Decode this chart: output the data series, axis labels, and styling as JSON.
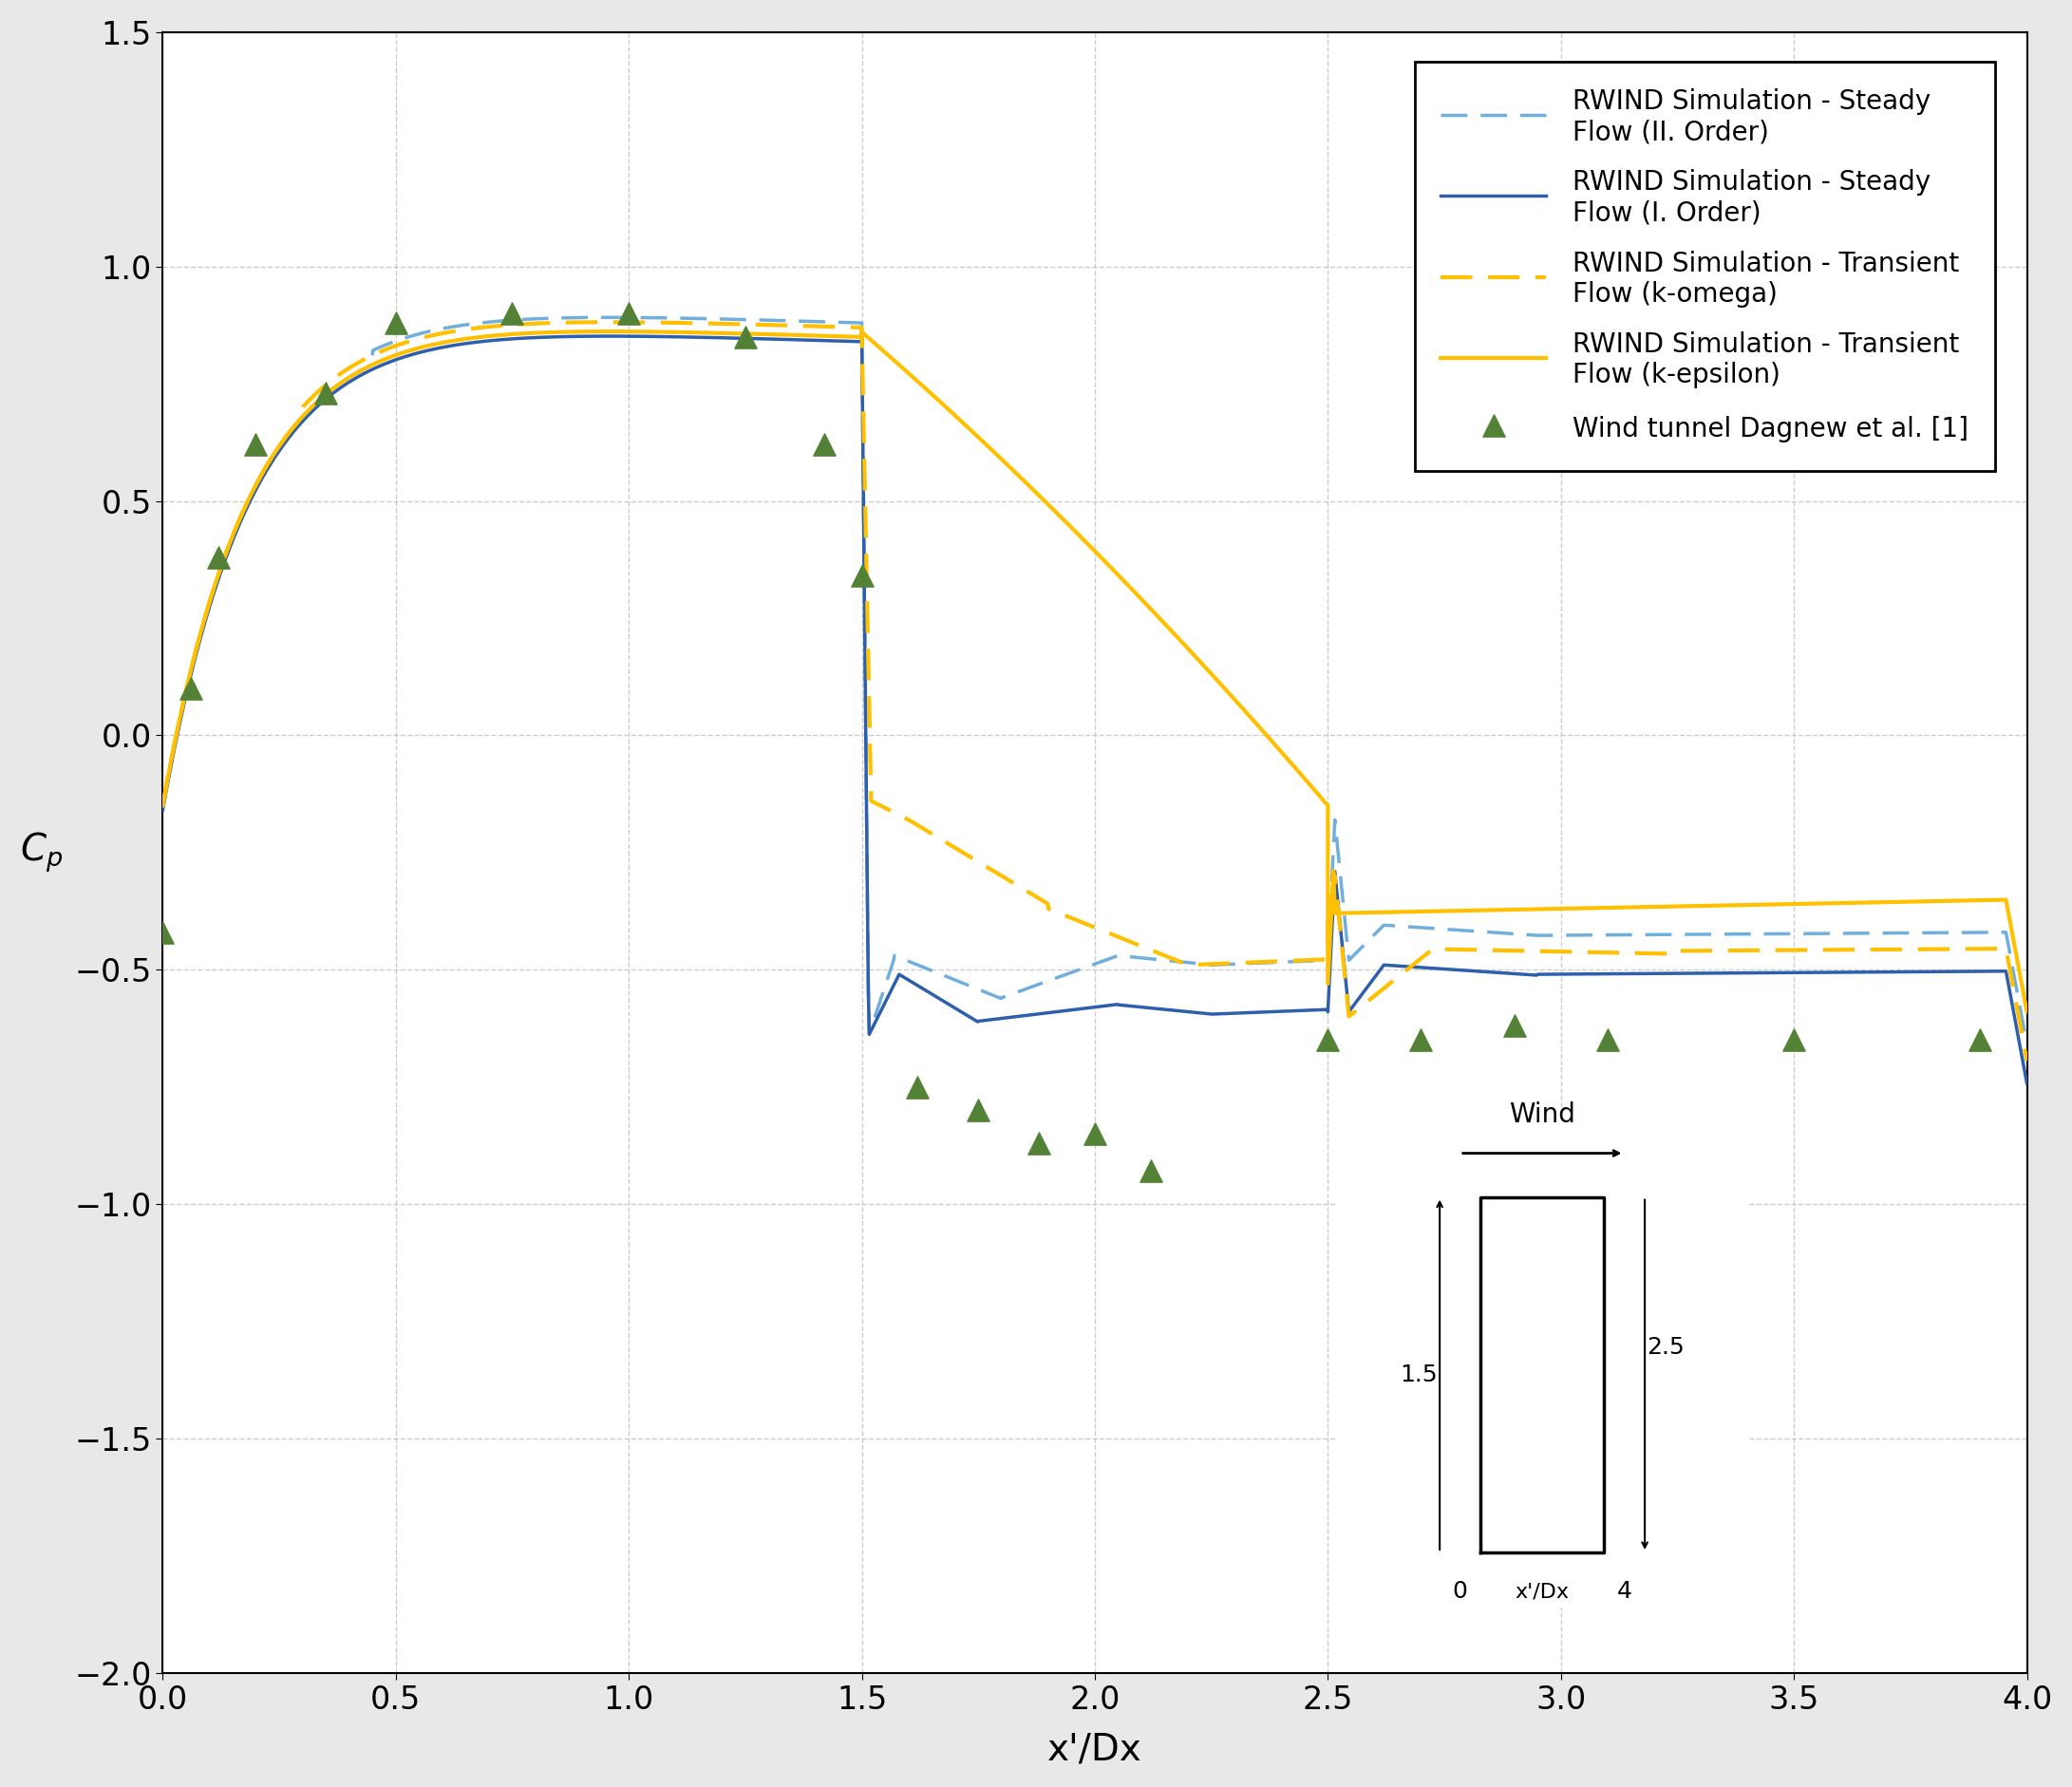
{
  "title": "",
  "xlabel": "x'/Dx",
  "xlim": [
    0.0,
    4.0
  ],
  "ylim": [
    -2.0,
    1.5
  ],
  "xticks": [
    0.0,
    0.5,
    1.0,
    1.5,
    2.0,
    2.5,
    3.0,
    3.5,
    4.0
  ],
  "yticks": [
    -2.0,
    -1.5,
    -1.0,
    -0.5,
    0.0,
    0.5,
    1.0,
    1.5
  ],
  "bg_color": "#e8e8e8",
  "plot_bg_color": "#ffffff",
  "grid_color": "#c0c0c0",
  "yellow_solid_color": "#FFC000",
  "yellow_dashed_color": "#FFC000",
  "blue_solid_color": "#2E5FAC",
  "blue_dashed_color": "#70AEDD",
  "scatter_color": "#538135",
  "legend_labels": [
    "RWIND Simulation - Transient\nFlow (k-epsilon)",
    "RWIND Simulation - Transient\nFlow (k-omega)",
    "RWIND Simulation - Steady\nFlow (I. Order)",
    "RWIND Simulation - Steady\nFlow (II. Order)",
    "Wind tunnel Dagnew et al. [1]"
  ],
  "scatter_x": [
    0.0,
    0.06,
    0.12,
    0.2,
    0.35,
    0.5,
    0.75,
    1.0,
    1.25,
    1.42,
    1.5,
    1.62,
    1.75,
    1.88,
    2.0,
    2.12,
    2.5,
    2.7,
    2.9,
    3.1,
    3.5,
    3.9
  ],
  "scatter_y": [
    -0.42,
    0.1,
    0.38,
    0.62,
    0.73,
    0.88,
    0.9,
    0.9,
    0.85,
    0.62,
    0.34,
    -0.75,
    -0.8,
    -0.87,
    -0.85,
    -0.93,
    -0.65,
    -0.65,
    -0.62,
    -0.65,
    -0.65,
    -0.65
  ]
}
